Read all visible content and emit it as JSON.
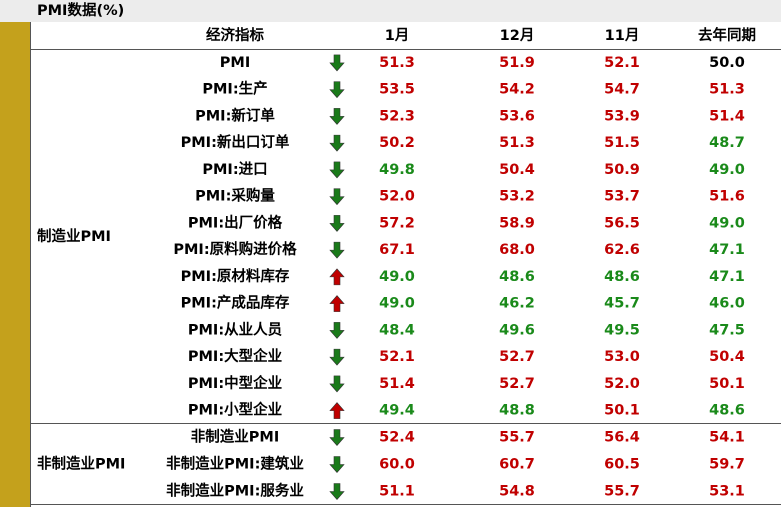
{
  "title": "PMI数据(%)",
  "colors": {
    "above": "#c00000",
    "below": "#1a8a1a",
    "even": "#000000",
    "up": "#c00000",
    "down": "#1a7a1a"
  },
  "table": {
    "header": [
      "经济指标",
      "1月",
      "12月",
      "11月",
      "去年同期"
    ],
    "groups": [
      {
        "label": "制造业PMI",
        "rows": [
          {
            "name": "PMI",
            "trend": "down",
            "values": [
              "51.3",
              "51.9",
              "52.1",
              "50.0"
            ]
          },
          {
            "name": "PMI:生产",
            "trend": "down",
            "values": [
              "53.5",
              "54.2",
              "54.7",
              "51.3"
            ]
          },
          {
            "name": "PMI:新订单",
            "trend": "down",
            "values": [
              "52.3",
              "53.6",
              "53.9",
              "51.4"
            ]
          },
          {
            "name": "PMI:新出口订单",
            "trend": "down",
            "values": [
              "50.2",
              "51.3",
              "51.5",
              "48.7"
            ]
          },
          {
            "name": "PMI:进口",
            "trend": "down",
            "values": [
              "49.8",
              "50.4",
              "50.9",
              "49.0"
            ]
          },
          {
            "name": "PMI:采购量",
            "trend": "down",
            "values": [
              "52.0",
              "53.2",
              "53.7",
              "51.6"
            ]
          },
          {
            "name": "PMI:出厂价格",
            "trend": "down",
            "values": [
              "57.2",
              "58.9",
              "56.5",
              "49.0"
            ]
          },
          {
            "name": "PMI:原料购进价格",
            "trend": "down",
            "values": [
              "67.1",
              "68.0",
              "62.6",
              "47.1"
            ]
          },
          {
            "name": "PMI:原材料库存",
            "trend": "up",
            "values": [
              "49.0",
              "48.6",
              "48.6",
              "47.1"
            ]
          },
          {
            "name": "PMI:产成品库存",
            "trend": "up",
            "values": [
              "49.0",
              "46.2",
              "45.7",
              "46.0"
            ]
          },
          {
            "name": "PMI:从业人员",
            "trend": "down",
            "values": [
              "48.4",
              "49.6",
              "49.5",
              "47.5"
            ]
          },
          {
            "name": "PMI:大型企业",
            "trend": "down",
            "values": [
              "52.1",
              "52.7",
              "53.0",
              "50.4"
            ]
          },
          {
            "name": "PMI:中型企业",
            "trend": "down",
            "values": [
              "51.4",
              "52.7",
              "52.0",
              "50.1"
            ]
          },
          {
            "name": "PMI:小型企业",
            "trend": "up",
            "values": [
              "49.4",
              "48.8",
              "50.1",
              "48.6"
            ]
          }
        ]
      },
      {
        "label": "非制造业PMI",
        "rows": [
          {
            "name": "非制造业PMI",
            "trend": "down",
            "values": [
              "52.4",
              "55.7",
              "56.4",
              "54.1"
            ]
          },
          {
            "name": "非制造业PMI:建筑业",
            "trend": "down",
            "values": [
              "60.0",
              "60.7",
              "60.5",
              "59.7"
            ]
          },
          {
            "name": "非制造业PMI:服务业",
            "trend": "down",
            "values": [
              "51.1",
              "54.8",
              "55.7",
              "53.1"
            ]
          }
        ]
      }
    ]
  }
}
